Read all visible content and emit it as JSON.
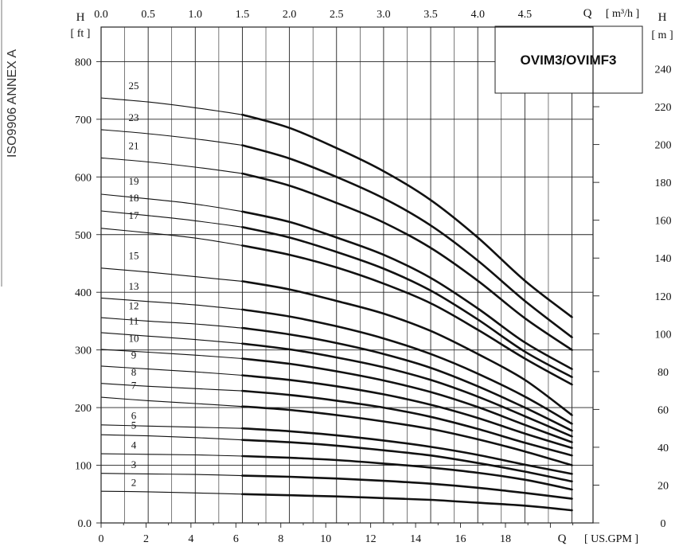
{
  "side_label": "ISO9906 ANNEX A",
  "model_label": "OVIM3/OVIMF3",
  "colors": {
    "model_text": "#1f4fa0",
    "curve": "#111111",
    "grid": "#222222"
  },
  "chart_data": {
    "type": "line",
    "title": "",
    "axes": {
      "top": {
        "label": "Q",
        "unit": "[ m³/h ]",
        "range": [
          0,
          5.5
        ],
        "ticks": [
          "0.0",
          "0.5",
          "1.0",
          "1.5",
          "2.0",
          "2.5",
          "3.0",
          "3.5",
          "4.0",
          "4.5"
        ]
      },
      "bottom": {
        "label": "Q",
        "unit": "[ US.GPM ]",
        "range": [
          0,
          22.5
        ],
        "ticks": [
          "0",
          "2",
          "4",
          "6",
          "8",
          "10",
          "12",
          "14",
          "16",
          "18"
        ]
      },
      "left": {
        "label": "H",
        "unit": "[ ft ]",
        "range": [
          0,
          820
        ],
        "ticks": [
          "0.0",
          "100",
          "200",
          "300",
          "400",
          "500",
          "600",
          "700",
          "800"
        ]
      },
      "right": {
        "label": "H",
        "unit": "[ m ]",
        "range": [
          0,
          250
        ],
        "ticks": [
          "0",
          "20",
          "40",
          "60",
          "80",
          "100",
          "120",
          "140",
          "160",
          "180",
          "200",
          "220",
          "240"
        ]
      }
    },
    "x_units": "m3/h",
    "y_units": "ft",
    "bold_from_x": 1.5,
    "x": [
      0,
      0.5,
      1.0,
      1.5,
      2.0,
      2.5,
      3.0,
      3.5,
      4.0,
      4.5,
      5.0
    ],
    "series": [
      {
        "name": "25",
        "values": [
          737,
          730,
          720,
          708,
          685,
          650,
          610,
          560,
          495,
          420,
          357
        ]
      },
      {
        "name": "23",
        "values": [
          682,
          675,
          666,
          655,
          632,
          600,
          563,
          516,
          455,
          385,
          322
        ]
      },
      {
        "name": "21",
        "values": [
          633,
          626,
          617,
          606,
          585,
          555,
          521,
          477,
          420,
          355,
          300
        ]
      },
      {
        "name": "19",
        "values": [
          570,
          562,
          553,
          540,
          522,
          495,
          465,
          425,
          372,
          313,
          267
        ]
      },
      {
        "name": "18",
        "values": [
          541,
          533,
          524,
          513,
          495,
          470,
          441,
          403,
          353,
          297,
          253
        ]
      },
      {
        "name": "17",
        "values": [
          511,
          503,
          494,
          481,
          465,
          443,
          415,
          381,
          335,
          285,
          240
        ]
      },
      {
        "name": "15",
        "values": [
          442,
          435,
          427,
          419,
          405,
          385,
          363,
          333,
          293,
          248,
          187
        ]
      },
      {
        "name": "13",
        "values": [
          390,
          384,
          378,
          370,
          358,
          341,
          320,
          293,
          259,
          219,
          172
        ]
      },
      {
        "name": "12",
        "values": [
          356,
          350,
          345,
          338,
          327,
          312,
          293,
          269,
          237,
          200,
          160
        ]
      },
      {
        "name": "11",
        "values": [
          330,
          324,
          318,
          311,
          301,
          287,
          270,
          248,
          219,
          185,
          150
        ]
      },
      {
        "name": "10",
        "values": [
          301,
          296,
          291,
          285,
          276,
          263,
          247,
          227,
          201,
          170,
          140
        ]
      },
      {
        "name": "9",
        "values": [
          272,
          267,
          262,
          256,
          248,
          237,
          223,
          205,
          182,
          155,
          130
        ]
      },
      {
        "name": "8",
        "values": [
          242,
          237,
          233,
          229,
          222,
          212,
          200,
          184,
          163,
          139,
          117
        ]
      },
      {
        "name": "7",
        "values": [
          218,
          212,
          207,
          202,
          196,
          187,
          176,
          163,
          145,
          124,
          100
        ]
      },
      {
        "name": "6",
        "values": [
          170,
          168,
          166,
          164,
          159,
          152,
          143,
          132,
          118,
          101,
          85
        ]
      },
      {
        "name": "5",
        "values": [
          153,
          151,
          148,
          144,
          140,
          134,
          126,
          117,
          104,
          89,
          72
        ]
      },
      {
        "name": "4",
        "values": [
          120,
          119,
          118,
          116,
          113,
          109,
          103,
          96,
          87,
          75,
          58
        ]
      },
      {
        "name": "3",
        "values": [
          86,
          85,
          84,
          82,
          80,
          77,
          73,
          68,
          61,
          52,
          42
        ]
      },
      {
        "name": "2",
        "values": [
          55,
          54,
          52,
          50,
          48,
          46,
          43,
          40,
          35,
          30,
          22
        ]
      }
    ]
  }
}
